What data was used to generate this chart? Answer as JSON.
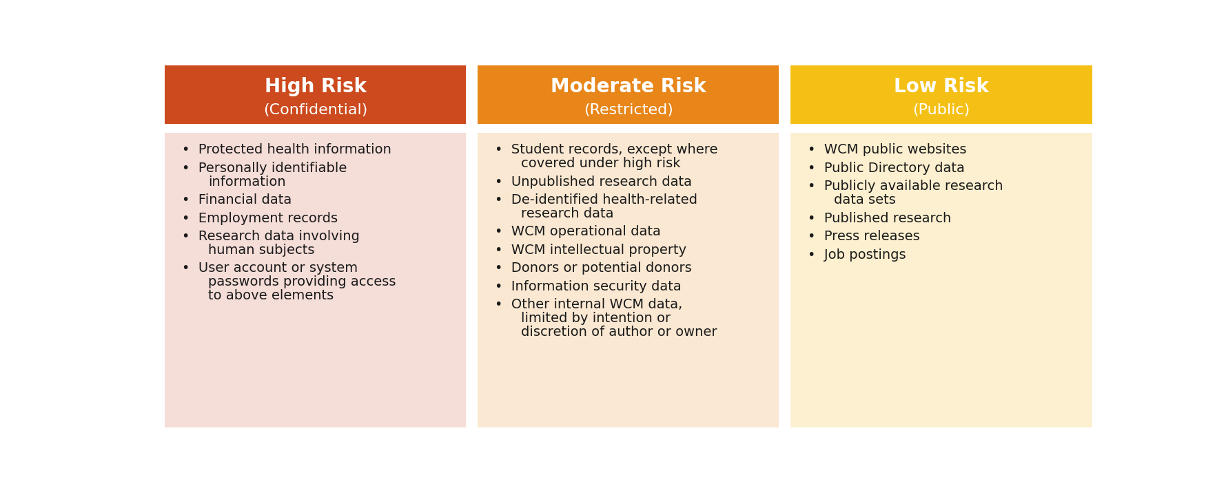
{
  "columns": [
    {
      "title": "High Risk",
      "subtitle": "(Confidential)",
      "header_color": "#CC4A1E",
      "body_color": "#F5DDD8",
      "items": [
        "Protected health information",
        "Personally identifiable\ninformation",
        "Financial data",
        "Employment records",
        "Research data involving\nhuman subjects",
        "User account or system\npasswords providing access\nto above elements"
      ]
    },
    {
      "title": "Moderate Risk",
      "subtitle": "(Restricted)",
      "header_color": "#E8861A",
      "body_color": "#FAE8D2",
      "items": [
        "Student records, except where\ncovered under high risk",
        "Unpublished research data",
        "De-identified health-related\nresearch data",
        "WCM operational data",
        "WCM intellectual property",
        "Donors or potential donors",
        "Information security data",
        "Other internal WCM data,\nlimited by intention or\ndiscretion of author or owner"
      ]
    },
    {
      "title": "Low Risk",
      "subtitle": "(Public)",
      "header_color": "#F5C016",
      "body_color": "#FDF0D0",
      "items": [
        "WCM public websites",
        "Public Directory data",
        "Publicly available research\ndata sets",
        "Published research",
        "Press releases",
        "Job postings"
      ]
    }
  ],
  "fig_width": 17.79,
  "fig_height": 7.09,
  "background_color": "#ffffff",
  "text_color": "#1a1a1a",
  "header_title_fontsize": 20,
  "header_subtitle_fontsize": 16,
  "item_fontsize": 14,
  "bullet": "•"
}
